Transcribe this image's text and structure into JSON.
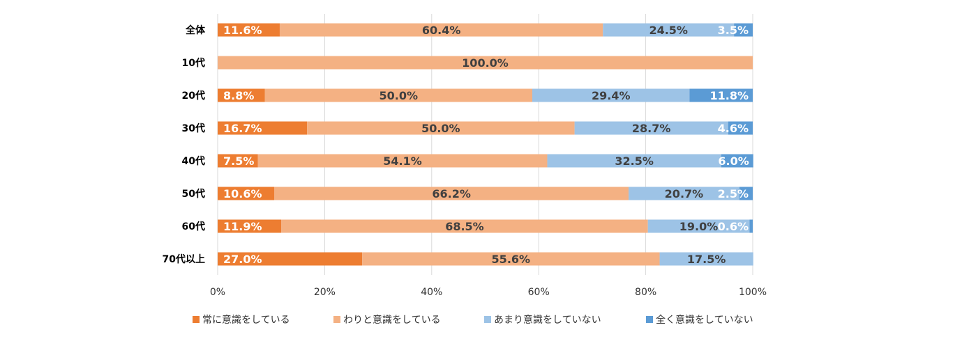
{
  "chart_data": {
    "type": "bar",
    "orientation": "horizontal",
    "stacked": "percent",
    "categories": [
      "全体",
      "10代",
      "20代",
      "30代",
      "40代",
      "50代",
      "60代",
      "70代以上"
    ],
    "series": [
      {
        "name": "常に意識をしている",
        "color": "#ED7D31",
        "label_color": "#FFFFFF",
        "values": [
          11.6,
          0,
          8.8,
          16.7,
          7.5,
          10.6,
          11.9,
          27.0
        ]
      },
      {
        "name": "わりと意識をしている",
        "color": "#F4B183",
        "label_color": "#404040",
        "values": [
          60.4,
          100.0,
          50.0,
          50.0,
          54.1,
          66.2,
          68.5,
          55.6
        ]
      },
      {
        "name": "あまり意識をしていない",
        "color": "#9DC3E6",
        "label_color": "#404040",
        "values": [
          24.5,
          0,
          29.4,
          28.7,
          32.5,
          20.7,
          19.0,
          17.5
        ]
      },
      {
        "name": "全く意識をしていない",
        "color": "#5B9BD5",
        "label_color": "#FFFFFF",
        "values": [
          3.5,
          0,
          11.8,
          4.6,
          6.0,
          2.5,
          0.6,
          0
        ]
      }
    ],
    "xlim": [
      0,
      100
    ],
    "xticks": [
      "0%",
      "20%",
      "40%",
      "60%",
      "80%",
      "100%"
    ],
    "grid": true,
    "legend": "bottom",
    "title": "",
    "xlabel": "",
    "ylabel": ""
  }
}
